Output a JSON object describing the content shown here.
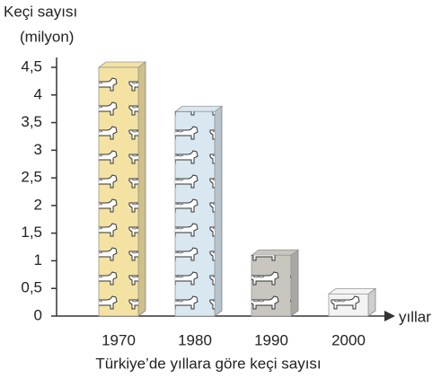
{
  "chart_data": {
    "type": "bar",
    "y_axis_title": [
      "Keçi sayısı",
      "(milyon)"
    ],
    "x_axis_title": "yıllar",
    "caption": "Türkiye’de yıllara göre keçi sayısı",
    "categories": [
      "1970",
      "1980",
      "1990",
      "2000"
    ],
    "values": [
      4.5,
      3.7,
      1.1,
      0.4
    ],
    "colors": [
      "#f3e2a2",
      "#d9e7f1",
      "#c9c6bf",
      "#f3f3f3"
    ],
    "ylim": [
      0,
      4.5
    ],
    "yticks": [
      0,
      {
        "value": 0.5,
        "label": "0,5"
      },
      1,
      {
        "value": 1.5,
        "label": "1,5"
      },
      2,
      {
        "value": 2.5,
        "label": "2,5"
      },
      3,
      {
        "value": 3.5,
        "label": "3,5"
      },
      4,
      {
        "value": 4.5,
        "label": "4,5"
      }
    ]
  }
}
